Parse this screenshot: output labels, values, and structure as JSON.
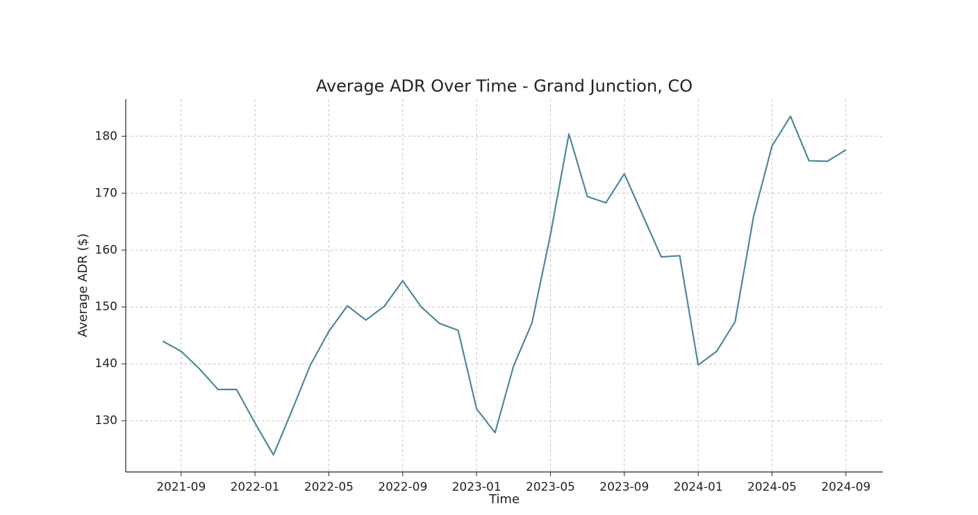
{
  "chart_data": {
    "type": "line",
    "title": "Average ADR Over Time - Grand Junction, CO",
    "xlabel": "Time",
    "ylabel": "Average ADR ($)",
    "x": [
      "2021-08",
      "2021-09",
      "2021-10",
      "2021-11",
      "2021-12",
      "2022-01",
      "2022-02",
      "2022-03",
      "2022-04",
      "2022-05",
      "2022-06",
      "2022-07",
      "2022-08",
      "2022-09",
      "2022-10",
      "2022-11",
      "2022-12",
      "2023-01",
      "2023-02",
      "2023-03",
      "2023-04",
      "2023-05",
      "2023-06",
      "2023-07",
      "2023-08",
      "2023-09",
      "2023-10",
      "2023-11",
      "2023-12",
      "2024-01",
      "2024-02",
      "2024-03",
      "2024-04",
      "2024-05",
      "2024-06",
      "2024-07",
      "2024-08",
      "2024-09"
    ],
    "series": [
      {
        "name": "Average ADR",
        "color": "#4e8799",
        "values": [
          144.0,
          142.2,
          139.1,
          135.5,
          135.5,
          129.6,
          124.0,
          131.8,
          139.8,
          145.7,
          150.2,
          147.7,
          150.1,
          154.6,
          150.0,
          147.1,
          145.9,
          132.1,
          127.9,
          139.6,
          147.2,
          162.7,
          180.4,
          169.4,
          168.3,
          173.4,
          166.1,
          158.8,
          159.0,
          139.8,
          142.2,
          147.4,
          165.9,
          178.3,
          183.5,
          175.7,
          175.6,
          177.6
        ]
      }
    ],
    "xlim": [
      "2021-06",
      "2024-11"
    ],
    "xticks": [
      "2021-09",
      "2022-01",
      "2022-05",
      "2022-09",
      "2023-01",
      "2023-05",
      "2023-09",
      "2024-01",
      "2024-05",
      "2024-09"
    ],
    "ylim": [
      121,
      186.5
    ],
    "yticks": [
      130,
      140,
      150,
      160,
      170,
      180
    ],
    "grid": true
  }
}
